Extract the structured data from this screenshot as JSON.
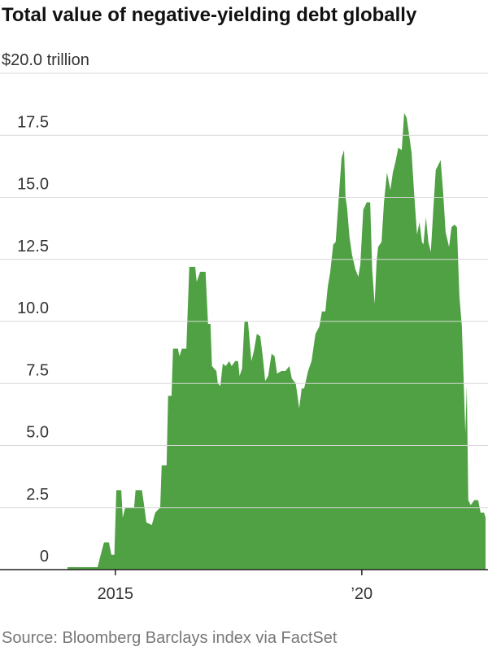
{
  "chart_data": {
    "type": "area",
    "title": "Total value of negative-yielding debt globally",
    "source": "Source: Bloomberg Barclays index via FactSet",
    "color": "#50a044",
    "grid": true,
    "x": [
      2014.03,
      2014.64,
      2014.69,
      2014.77,
      2014.87,
      2014.92,
      2014.98,
      2015.02,
      2015.12,
      2015.15,
      2015.2,
      2015.38,
      2015.41,
      2015.54,
      2015.59,
      2015.63,
      2015.74,
      2015.81,
      2015.91,
      2015.94,
      2016.04,
      2016.07,
      2016.14,
      2016.17,
      2016.27,
      2016.3,
      2016.35,
      2016.44,
      2016.5,
      2016.62,
      2016.65,
      2016.72,
      2016.83,
      2016.88,
      2016.93,
      2016.96,
      2017.05,
      2017.08,
      2017.13,
      2017.18,
      2017.24,
      2017.31,
      2017.36,
      2017.43,
      2017.49,
      2017.52,
      2017.57,
      2017.62,
      2017.69,
      2017.76,
      2017.81,
      2017.87,
      2017.94,
      2017.99,
      2018.04,
      2018.1,
      2018.17,
      2018.23,
      2018.28,
      2018.37,
      2018.45,
      2018.53,
      2018.58,
      2018.66,
      2018.73,
      2018.78,
      2018.83,
      2018.91,
      2018.98,
      2019.06,
      2019.14,
      2019.19,
      2019.26,
      2019.31,
      2019.36,
      2019.42,
      2019.47,
      2019.54,
      2019.59,
      2019.64,
      2019.67,
      2019.7,
      2019.75,
      2019.8,
      2019.87,
      2019.93,
      2019.97,
      2020.03,
      2020.1,
      2020.17,
      2020.21,
      2020.26,
      2020.3,
      2020.33,
      2020.4,
      2020.45,
      2020.51,
      2020.58,
      2020.63,
      2020.68,
      2020.74,
      2020.81,
      2020.86,
      2020.91,
      2020.96,
      2021.01,
      2021.06,
      2021.12,
      2021.17,
      2021.22,
      2021.25,
      2021.3,
      2021.35,
      2021.4,
      2021.45,
      2021.5,
      2021.55,
      2021.6,
      2021.65,
      2021.7,
      2021.77,
      2021.82,
      2021.88,
      2021.93,
      2021.98,
      2022.03,
      2022.06,
      2022.1,
      2022.13,
      2022.16,
      2022.21,
      2022.28,
      2022.36,
      2022.41,
      2022.48,
      2022.51
    ],
    "values": [
      0.1,
      0.1,
      0.5,
      1.1,
      1.1,
      0.6,
      0.6,
      3.2,
      3.2,
      2.1,
      2.5,
      2.5,
      3.2,
      3.2,
      2.5,
      1.9,
      1.8,
      2.3,
      2.5,
      4.2,
      4.2,
      7.0,
      7.0,
      8.9,
      8.9,
      8.6,
      8.9,
      8.9,
      12.2,
      12.2,
      11.6,
      12.0,
      12.0,
      9.9,
      9.9,
      8.2,
      8.0,
      7.5,
      7.4,
      8.3,
      8.2,
      8.4,
      8.2,
      8.4,
      8.4,
      7.8,
      8.1,
      10.0,
      10.0,
      8.4,
      8.8,
      9.5,
      9.4,
      8.6,
      7.6,
      7.8,
      8.7,
      8.6,
      7.9,
      8.0,
      8.0,
      8.2,
      7.7,
      7.5,
      6.5,
      7.3,
      7.3,
      8.0,
      8.4,
      9.5,
      9.8,
      10.4,
      10.4,
      11.4,
      12.0,
      13.1,
      13.2,
      15.2,
      16.6,
      16.9,
      15.0,
      14.6,
      13.4,
      12.7,
      12.1,
      11.8,
      12.3,
      14.5,
      14.8,
      14.8,
      12.1,
      10.7,
      12.4,
      13.0,
      13.2,
      14.8,
      16.0,
      15.3,
      16.0,
      16.4,
      17.0,
      16.9,
      18.4,
      18.2,
      17.5,
      16.8,
      15.2,
      13.5,
      14.0,
      13.2,
      13.1,
      14.2,
      13.2,
      12.8,
      14.5,
      16.1,
      16.3,
      16.5,
      15.2,
      13.6,
      13.0,
      13.8,
      13.9,
      13.8,
      11.0,
      9.8,
      8.0,
      5.5,
      7.4,
      2.8,
      2.6,
      2.8,
      2.8,
      2.3,
      2.3,
      2.1
    ],
    "xlim": [
      2012.66,
      2022.56
    ],
    "xticks": [
      2015,
      {
        "value": 2020,
        "label": "’20"
      }
    ],
    "ylim": [
      0,
      20
    ],
    "yticks": [
      0,
      2.5,
      {
        "value": 5,
        "label": "5.0"
      },
      7.5,
      {
        "value": 10,
        "label": "10.0"
      },
      12.5,
      {
        "value": 15,
        "label": "15.0"
      },
      17.5,
      {
        "value": 20,
        "label": "$20.0 trillion"
      }
    ]
  }
}
